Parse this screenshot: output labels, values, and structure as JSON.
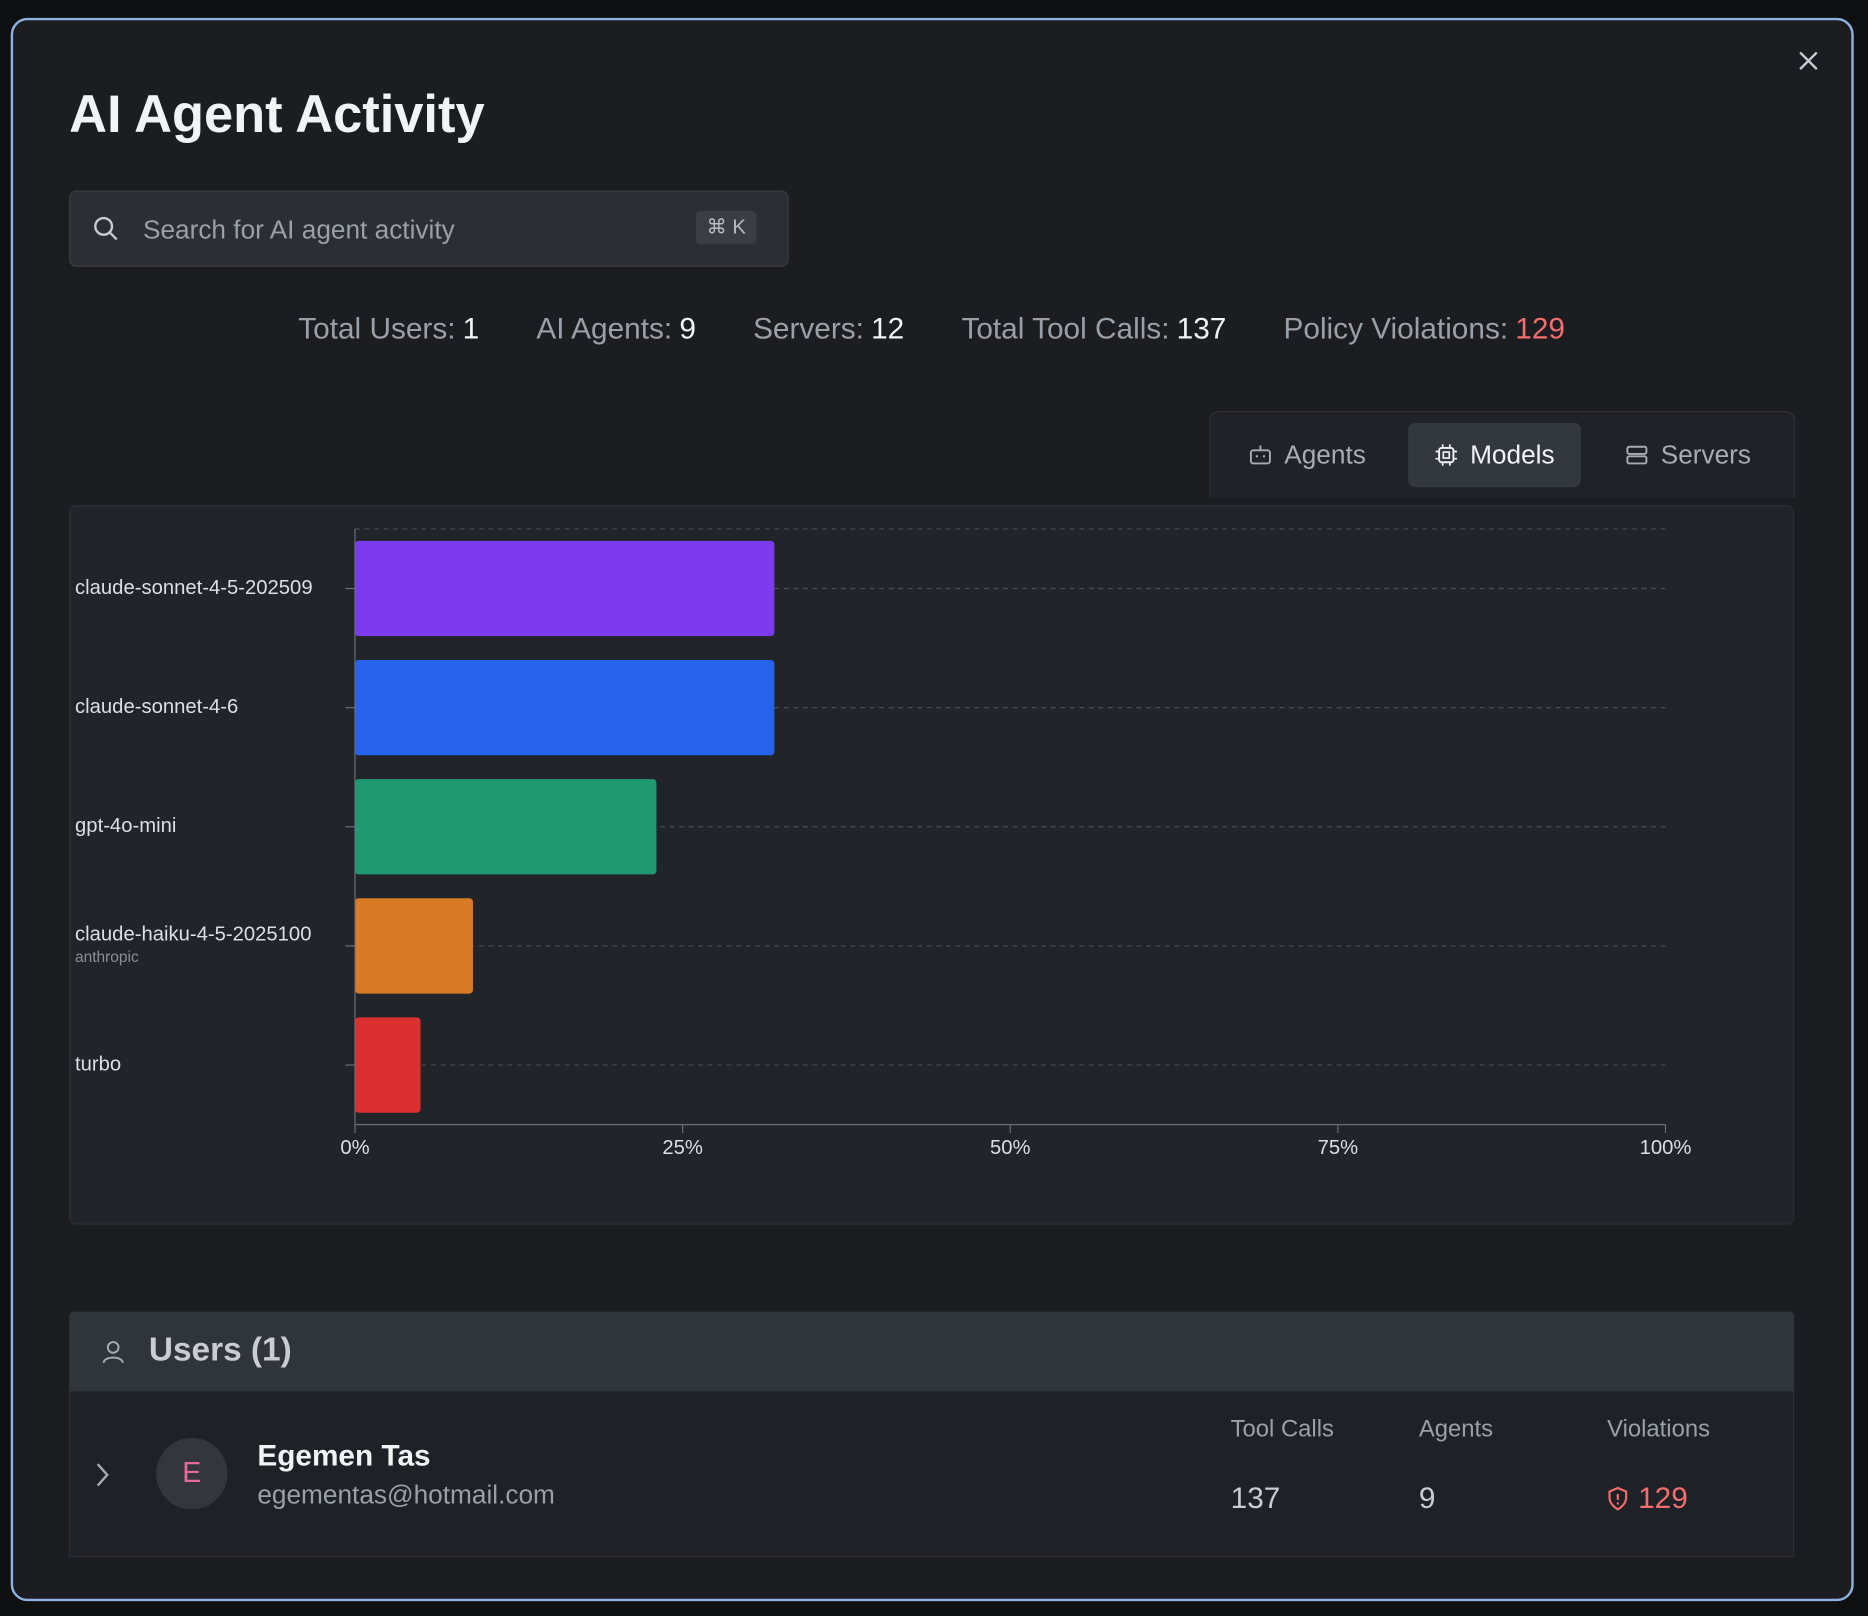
{
  "header": {
    "title": "AI Agent Activity"
  },
  "search": {
    "placeholder": "Search for AI agent activity",
    "shortcut": "⌘ K"
  },
  "stats": [
    {
      "label": "Total Users:",
      "value": 1
    },
    {
      "label": "AI Agents:",
      "value": 9
    },
    {
      "label": "Servers:",
      "value": 12
    },
    {
      "label": "Total Tool Calls:",
      "value": 137
    },
    {
      "label": "Policy Violations:",
      "value": 129
    }
  ],
  "tabs": [
    "Agents",
    "Models",
    "Servers"
  ],
  "chart_data": {
    "type": "hbar",
    "categories": [
      "claude-sonnet-4-5-202509",
      "claude-sonnet-4-6",
      "gpt-4o-mini",
      "claude-haiku-4-5-2025100",
      "turbo"
    ],
    "category_sublabels": [
      null,
      null,
      null,
      "anthropic",
      null
    ],
    "values": [
      32,
      32,
      23,
      9,
      5
    ],
    "colors": [
      "#7c3aed",
      "#2563eb",
      "#1f9970",
      "#d97a27",
      "#dc2f2f"
    ],
    "xlim": [
      0,
      100
    ],
    "xticks": [
      {
        "value": 0,
        "label": "0%"
      },
      {
        "value": 25,
        "label": "25%"
      },
      {
        "value": 50,
        "label": "50%"
      },
      {
        "value": 75,
        "label": "75%"
      },
      {
        "value": 100,
        "label": "100%"
      }
    ],
    "grid": true
  },
  "users": {
    "title": "Users (1)",
    "columns": [
      "Tool Calls",
      "Agents",
      "Violations"
    ],
    "rows": [
      {
        "initial": "E",
        "name": "Egemen Tas",
        "email": "egementas@hotmail.com",
        "values": [
          137,
          9,
          129
        ]
      }
    ]
  }
}
